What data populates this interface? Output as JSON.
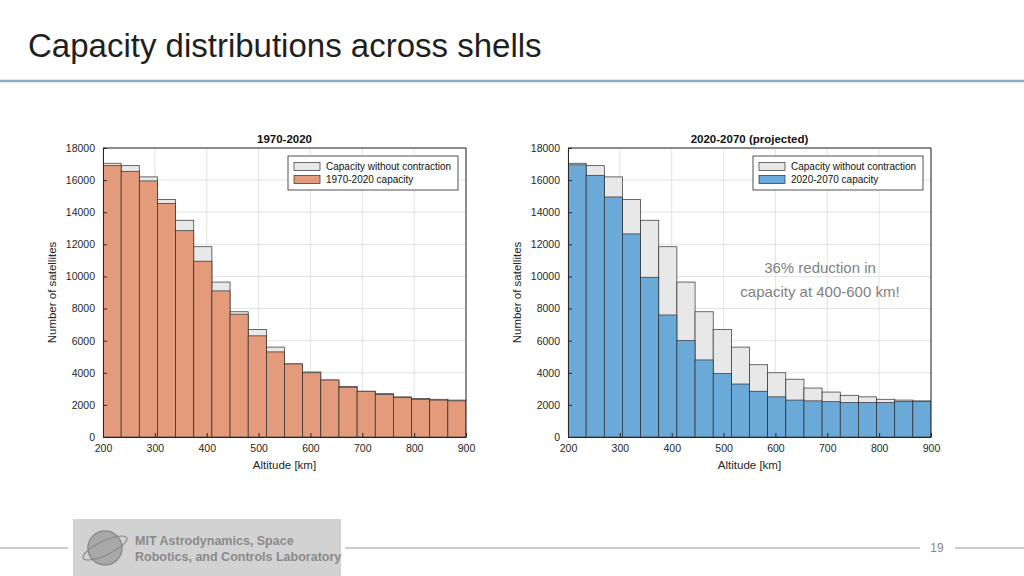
{
  "slide": {
    "title": "Capacity distributions across shells",
    "footer_lines": [
      "MIT Astrodynamics, Space",
      "Robotics, and Controls Laboratory"
    ],
    "page_number": 19
  },
  "chart_data": [
    {
      "type": "histogram",
      "title": "1970-2020",
      "x_label": "Altitude [km]",
      "y_label": "Number of satellites",
      "bins": [
        200,
        235,
        270,
        305,
        340,
        375,
        410,
        445,
        480,
        515,
        550,
        585,
        620,
        655,
        690,
        725,
        760,
        795,
        830,
        865,
        900
      ],
      "xlim": [
        200,
        900
      ],
      "xticks": [
        200,
        300,
        400,
        500,
        600,
        700,
        800,
        900
      ],
      "ylim": [
        0,
        18000
      ],
      "yticks": [
        0,
        2000,
        4000,
        6000,
        8000,
        10000,
        12000,
        14000,
        16000,
        18000
      ],
      "grid": true,
      "legend": "top-right",
      "series": [
        {
          "name": "Capacity without contraction",
          "color": "#e8e8e8",
          "values": [
            17050,
            16900,
            16200,
            14800,
            13500,
            11850,
            9650,
            7800,
            6700,
            5600,
            4550,
            4050,
            3550,
            3150,
            2850,
            2700,
            2500,
            2400,
            2350,
            2300
          ]
        },
        {
          "name": "1970-2020 capacity",
          "color": "#e39b7b",
          "values": [
            16900,
            16550,
            15950,
            14550,
            12850,
            10950,
            9100,
            7650,
            6300,
            5300,
            4550,
            4000,
            3550,
            3100,
            2850,
            2650,
            2450,
            2350,
            2300,
            2250
          ]
        }
      ]
    },
    {
      "type": "histogram",
      "title": "2020-2070 (projected)",
      "x_label": "Altitude [km]",
      "y_label": "Number of satellites",
      "bins": [
        200,
        235,
        270,
        305,
        340,
        375,
        410,
        445,
        480,
        515,
        550,
        585,
        620,
        655,
        690,
        725,
        760,
        795,
        830,
        865,
        900
      ],
      "xlim": [
        200,
        900
      ],
      "xticks": [
        200,
        300,
        400,
        500,
        600,
        700,
        800,
        900
      ],
      "ylim": [
        0,
        18000
      ],
      "yticks": [
        0,
        2000,
        4000,
        6000,
        8000,
        10000,
        12000,
        14000,
        16000,
        18000
      ],
      "grid": true,
      "legend": "top-right",
      "annotations": [
        {
          "lines": [
            "36% reduction in",
            "capacity at 400-600 km!"
          ]
        }
      ],
      "series": [
        {
          "name": "Capacity without contraction",
          "color": "#e8e8e8",
          "values": [
            17050,
            16900,
            16200,
            14800,
            13500,
            11850,
            9650,
            7800,
            6700,
            5600,
            4500,
            4000,
            3600,
            3050,
            2800,
            2600,
            2500,
            2350,
            2300,
            2250
          ]
        },
        {
          "name": "2020-2070 capacity",
          "color": "#6baad8",
          "values": [
            16950,
            16300,
            14950,
            12650,
            9950,
            7600,
            6000,
            4800,
            3950,
            3300,
            2850,
            2500,
            2300,
            2250,
            2200,
            2150,
            2150,
            2150,
            2200,
            2200
          ]
        }
      ]
    }
  ]
}
